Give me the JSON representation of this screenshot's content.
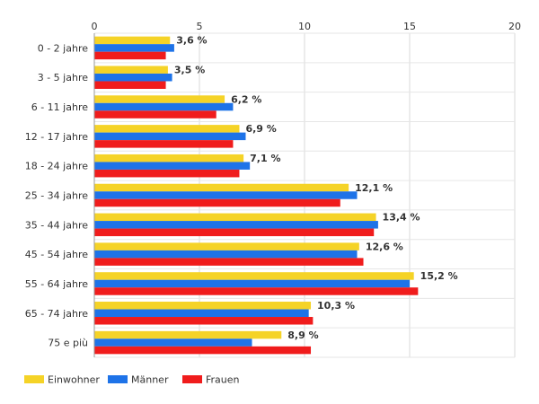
{
  "chart_data": {
    "type": "bar",
    "orientation": "horizontal",
    "title": "",
    "xlabel": "",
    "ylabel": "",
    "xlim": [
      0,
      20
    ],
    "ticks": [
      "0",
      "5",
      "10",
      "15",
      "20"
    ],
    "grid": true,
    "legend_position": "bottom-left",
    "categories": [
      "0 - 2 jahre",
      "3 - 5 jahre",
      "6 - 11 jahre",
      "12 - 17 jahre",
      "18 - 24 jahre",
      "25 - 34 jahre",
      "35 - 44 jahre",
      "45 - 54 jahre",
      "55 - 64 jahre",
      "65 - 74 jahre",
      "75 e più"
    ],
    "data_labels": [
      "3,6 %",
      "3,5 %",
      "6,2 %",
      "6,9 %",
      "7,1 %",
      "12,1 %",
      "13,4 %",
      "12,6 %",
      "15,2 %",
      "10,3 %",
      "8,9 %"
    ],
    "series": [
      {
        "name": "Einwohner",
        "color": "#f5d327",
        "values": [
          3.6,
          3.5,
          6.2,
          6.9,
          7.1,
          12.1,
          13.4,
          12.6,
          15.2,
          10.3,
          8.9
        ]
      },
      {
        "name": "Männer",
        "color": "#1e73e8",
        "values": [
          3.8,
          3.7,
          6.6,
          7.2,
          7.4,
          12.5,
          13.5,
          12.5,
          15.0,
          10.2,
          7.5
        ]
      },
      {
        "name": "Frauen",
        "color": "#f01c1c",
        "values": [
          3.4,
          3.4,
          5.8,
          6.6,
          6.9,
          11.7,
          13.3,
          12.8,
          15.4,
          10.4,
          10.3
        ]
      }
    ]
  }
}
